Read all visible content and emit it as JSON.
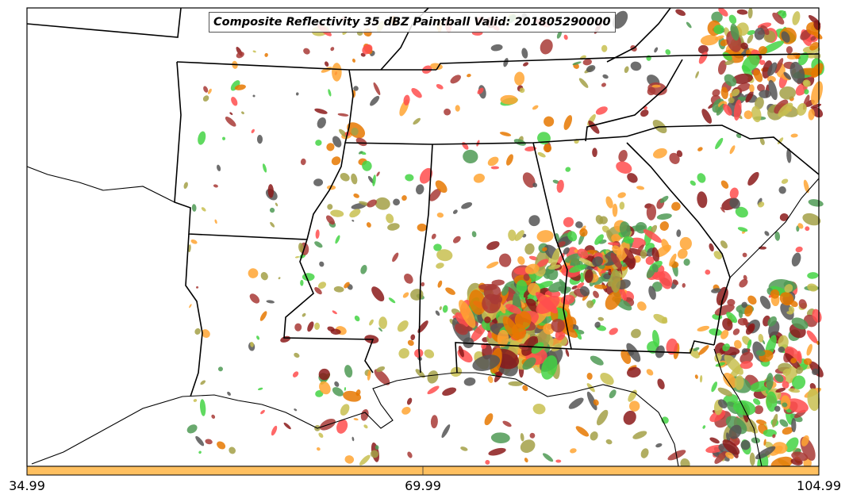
{
  "title": "Composite Reflectivity 35 dBZ Paintball Valid: 201805290000",
  "colorbar": {
    "color": "#ffc060",
    "ticks": [
      "34.99",
      "69.99",
      "104.99"
    ]
  },
  "paint_colors": [
    "#ff4d4d",
    "#ffa533",
    "#e67800",
    "#44d444",
    "#4f9a55",
    "#a3a046",
    "#a83a36",
    "#555555",
    "#c8c050",
    "#8b1a1a"
  ]
}
